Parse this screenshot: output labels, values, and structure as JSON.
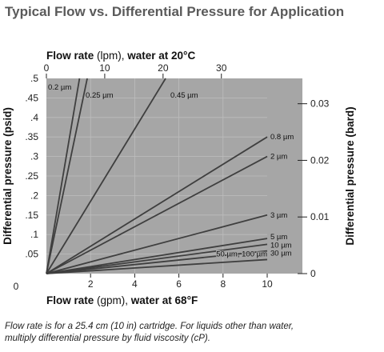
{
  "chart_data": {
    "type": "line",
    "title": "Typical Flow vs. Differential Pressure for Application",
    "footnote_line1": "Flow rate is for a 25.4 cm (10 in) cartridge. For liquids other than water,",
    "footnote_line2": "multiply differential pressure by fluid viscosity (cP).",
    "x_axis": {
      "label_bold": "Flow rate",
      "label_unit": " (gpm), ",
      "label_cond": "water at 68°F",
      "range": [
        0,
        10
      ],
      "ticks": [
        {
          "v": 2,
          "t": "2"
        },
        {
          "v": 4,
          "t": "4"
        },
        {
          "v": 6,
          "t": "6"
        },
        {
          "v": 8,
          "t": "8"
        },
        {
          "v": 10,
          "t": "10"
        }
      ]
    },
    "x2_axis": {
      "label_bold": "Flow rate",
      "label_unit": " (lpm), ",
      "label_cond": "water at 20°C",
      "range_lpm": [
        0,
        37.85
      ],
      "ticks": [
        {
          "v": 0,
          "t": "0"
        },
        {
          "v": 10,
          "t": "10"
        },
        {
          "v": 20,
          "t": "20"
        },
        {
          "v": 30,
          "t": "30"
        }
      ]
    },
    "y_axis": {
      "label": "Differential pressure (psid)",
      "range": [
        0,
        0.5
      ],
      "origin_label": "0",
      "ticks": [
        {
          "v": 0.05,
          "t": ".05"
        },
        {
          "v": 0.1,
          "t": ".1"
        },
        {
          "v": 0.15,
          "t": ".15"
        },
        {
          "v": 0.2,
          "t": ".2"
        },
        {
          "v": 0.25,
          "t": ".25"
        },
        {
          "v": 0.3,
          "t": ".3"
        },
        {
          "v": 0.35,
          "t": ".35"
        },
        {
          "v": 0.4,
          "t": ".4"
        },
        {
          "v": 0.45,
          "t": ".45"
        },
        {
          "v": 0.5,
          "t": ".5"
        }
      ]
    },
    "y2_axis": {
      "label": "Differential pressure (bard)",
      "ticks": [
        {
          "v": 0,
          "t": "0"
        },
        {
          "v": 0.01,
          "t": "0.01"
        },
        {
          "v": 0.02,
          "t": "0.02"
        },
        {
          "v": 0.03,
          "t": "0.03"
        }
      ]
    },
    "series": [
      {
        "name": "0.2 µm",
        "x": [
          0,
          1.5
        ],
        "y": [
          0,
          0.5
        ]
      },
      {
        "name": "0.25 µm",
        "x": [
          0,
          1.85
        ],
        "y": [
          0,
          0.5
        ]
      },
      {
        "name": "0.45 µm",
        "x": [
          0,
          5.4
        ],
        "y": [
          0,
          0.5
        ]
      },
      {
        "name": "0.8 µm",
        "x": [
          0,
          10
        ],
        "y": [
          0,
          0.35
        ]
      },
      {
        "name": "2 µm",
        "x": [
          0,
          10
        ],
        "y": [
          0,
          0.3
        ]
      },
      {
        "name": "3 µm",
        "x": [
          0,
          10
        ],
        "y": [
          0,
          0.15
        ]
      },
      {
        "name": "5 µm",
        "x": [
          0,
          10
        ],
        "y": [
          0,
          0.09
        ]
      },
      {
        "name": "10 µm",
        "x": [
          0,
          10
        ],
        "y": [
          0,
          0.075
        ]
      },
      {
        "name": "30 µm",
        "x": [
          0,
          10
        ],
        "y": [
          0,
          0.058
        ]
      },
      {
        "name": "50 µm, 100 µm",
        "x": [
          0,
          10
        ],
        "y": [
          0,
          0.036
        ]
      }
    ],
    "grid": true,
    "legend": "inline labels",
    "colors": {
      "plot_background": "#a6a6a6",
      "lines": "#3f3f3f",
      "text": "#111111",
      "title": "#5a5a5a"
    }
  }
}
